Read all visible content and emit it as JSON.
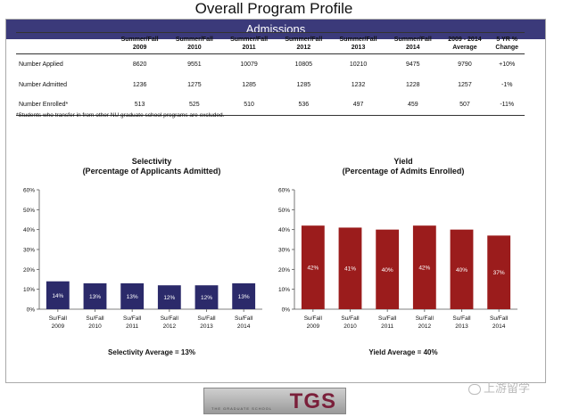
{
  "page": {
    "title": "Overall Program Profile"
  },
  "admissions": {
    "banner": "Admissions",
    "headers": [
      "",
      "Summer/Fall\n2009",
      "Summer/Fall\n2010",
      "Summer/Fall\n2011",
      "Summer/Fall\n2012",
      "Summer/Fall\n2013",
      "Summer/Fall\n2014",
      "2009 - 2014\nAverage",
      "5 YR %\nChange"
    ],
    "rows": [
      [
        "Number Applied",
        "8620",
        "9551",
        "10079",
        "10805",
        "10210",
        "9475",
        "9790",
        "+10%"
      ],
      [
        "Number Admitted",
        "1236",
        "1275",
        "1285",
        "1285",
        "1232",
        "1228",
        "1257",
        "-1%"
      ],
      [
        "Number Enrolled*",
        "513",
        "525",
        "510",
        "536",
        "497",
        "459",
        "507",
        "-11%"
      ]
    ],
    "footnote": "*Students who transfer in from other NU graduate school programs are excluded."
  },
  "chart_data": [
    {
      "type": "bar",
      "title": "Selectivity",
      "subtitle": "(Percentage of Applicants Admitted)",
      "categories": [
        "Su/Fall\n2009",
        "Su/Fall\n2010",
        "Su/Fall\n2011",
        "Su/Fall\n2012",
        "Su/Fall\n2013",
        "Su/Fall\n2014"
      ],
      "values": [
        14,
        13,
        13,
        12,
        12,
        13
      ],
      "data_labels": [
        "14%",
        "13%",
        "13%",
        "12%",
        "12%",
        "13%"
      ],
      "y_ticks": [
        "0%",
        "10%",
        "20%",
        "30%",
        "40%",
        "50%",
        "60%"
      ],
      "ylim": [
        0,
        60
      ],
      "color": "#2b2a6a",
      "average_note": "Selectivity Average = 13%",
      "grid": false
    },
    {
      "type": "bar",
      "title": "Yield",
      "subtitle": "(Percentage of Admits Enrolled)",
      "categories": [
        "Su/Fall\n2009",
        "Su/Fall\n2010",
        "Su/Fall\n2011",
        "Su/Fall\n2012",
        "Su/Fall\n2013",
        "Su/Fall\n2014"
      ],
      "values": [
        42,
        41,
        40,
        42,
        40,
        37
      ],
      "data_labels": [
        "42%",
        "41%",
        "40%",
        "42%",
        "40%",
        "37%"
      ],
      "y_ticks": [
        "0%",
        "10%",
        "20%",
        "30%",
        "40%",
        "50%",
        "60%"
      ],
      "ylim": [
        0,
        60
      ],
      "color": "#9b1c1c",
      "average_note": "Yield Average = 40%",
      "grid": false
    }
  ],
  "logo": {
    "text": "TGS",
    "subtext": "THE GRADUATE SCHOOL"
  },
  "watermark": {
    "text": "上游留学"
  }
}
